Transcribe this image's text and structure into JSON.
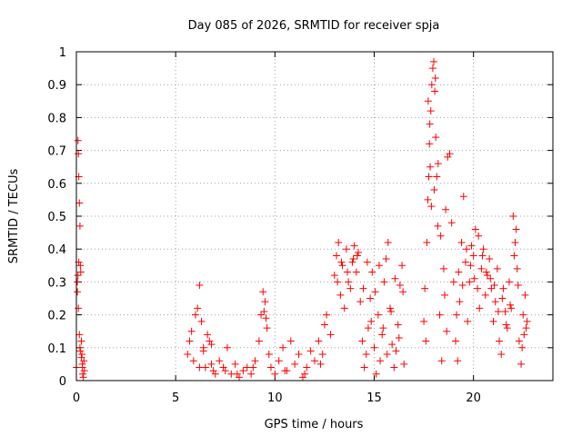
{
  "chart_data": {
    "type": "scatter",
    "title": "Day 085 of 2026, SRMTID for receiver spja",
    "xlabel": "GPS time / hours",
    "ylabel": "SRMTID / TECUs",
    "xlim": [
      0,
      24
    ],
    "ylim": [
      0,
      1
    ],
    "xticks": [
      0,
      5,
      10,
      15,
      20
    ],
    "xtick_labels": [
      "0",
      "5",
      "10",
      "15",
      "20"
    ],
    "yticks": [
      0,
      0.1,
      0.2,
      0.3,
      0.4,
      0.5,
      0.6,
      0.7,
      0.8,
      0.9,
      1
    ],
    "ytick_labels": [
      "0",
      "0.1",
      "0.2",
      "0.3",
      "0.4",
      "0.5",
      "0.6",
      "0.7",
      "0.8",
      "0.9",
      "1"
    ],
    "grid": true,
    "marker": "+",
    "series": [
      {
        "name": "SRMTID",
        "color": "#ff0000",
        "x": [
          0.0,
          0.05,
          0.08,
          0.1,
          0.12,
          0.15,
          0.18,
          0.2,
          0.22,
          0.25,
          0.28,
          0.3,
          0.32,
          0.35,
          0.38,
          0.4,
          0.05,
          0.1,
          0.15,
          0.12,
          0.18,
          0.08,
          0.2,
          0.25,
          0.3,
          5.6,
          5.7,
          5.8,
          5.9,
          6.0,
          6.1,
          6.2,
          6.3,
          6.4,
          6.5,
          6.6,
          6.7,
          6.8,
          6.9,
          7.0,
          7.2,
          7.4,
          7.6,
          7.8,
          8.0,
          8.2,
          8.4,
          8.6,
          8.8,
          9.0,
          9.2,
          9.3,
          9.4,
          9.5,
          9.6,
          9.7,
          9.8,
          10.0,
          10.2,
          10.4,
          10.6,
          10.8,
          11.0,
          11.2,
          11.4,
          11.6,
          11.8,
          12.0,
          12.2,
          12.4,
          12.5,
          12.6,
          12.8,
          13.0,
          13.1,
          13.2,
          13.3,
          13.4,
          13.5,
          13.6,
          13.7,
          13.8,
          13.9,
          14.0,
          14.1,
          14.2,
          14.3,
          14.4,
          14.5,
          14.6,
          14.7,
          14.8,
          14.9,
          15.0,
          15.1,
          15.2,
          15.3,
          15.4,
          15.5,
          15.6,
          15.7,
          15.8,
          15.9,
          16.0,
          16.1,
          16.2,
          16.3,
          16.4,
          16.5,
          17.5,
          17.55,
          17.6,
          17.65,
          17.7,
          17.75,
          17.8,
          17.85,
          17.9,
          17.95,
          18.0,
          18.05,
          18.1,
          18.15,
          18.2,
          18.3,
          18.4,
          18.5,
          18.6,
          18.7,
          18.8,
          18.9,
          19.0,
          19.1,
          19.2,
          19.3,
          19.4,
          19.5,
          19.6,
          19.7,
          19.8,
          19.9,
          20.0,
          20.1,
          20.2,
          20.3,
          20.4,
          20.5,
          20.6,
          20.7,
          20.8,
          20.9,
          21.0,
          21.1,
          21.2,
          21.3,
          21.4,
          21.5,
          21.6,
          21.7,
          21.8,
          21.9,
          22.0,
          22.1,
          22.2,
          22.3,
          22.4,
          22.5,
          22.6,
          22.7,
          6.2,
          6.4,
          6.8,
          7.5,
          8.1,
          8.9,
          9.45,
          9.55,
          10.5,
          11.5,
          12.3,
          13.15,
          13.35,
          13.65,
          13.95,
          14.15,
          14.45,
          14.65,
          14.85,
          15.05,
          15.25,
          15.45,
          15.65,
          15.85,
          16.05,
          16.25,
          16.45,
          17.72,
          17.78,
          17.82,
          17.88,
          18.02,
          18.08,
          18.22,
          18.35,
          18.55,
          18.65,
          19.15,
          19.25,
          19.45,
          19.65,
          19.85,
          20.05,
          20.25,
          20.45,
          20.65,
          20.85,
          21.05,
          21.25,
          21.45,
          21.65,
          21.85,
          22.05,
          22.15,
          22.25,
          22.45,
          22.55,
          22.65
        ],
        "y": [
          0.04,
          0.3,
          0.73,
          0.69,
          0.62,
          0.54,
          0.47,
          0.35,
          0.33,
          0.12,
          0.08,
          0.05,
          0.02,
          0.01,
          0.06,
          0.03,
          0.27,
          0.22,
          0.14,
          0.36,
          0.1,
          0.32,
          0.09,
          0.07,
          0.04,
          0.08,
          0.12,
          0.15,
          0.06,
          0.2,
          0.22,
          0.29,
          0.18,
          0.1,
          0.04,
          0.14,
          0.12,
          0.05,
          0.03,
          0.02,
          0.06,
          0.04,
          0.1,
          0.02,
          0.05,
          0.01,
          0.03,
          0.04,
          0.02,
          0.06,
          0.12,
          0.2,
          0.27,
          0.24,
          0.16,
          0.08,
          0.04,
          0.02,
          0.06,
          0.1,
          0.03,
          0.12,
          0.05,
          0.08,
          0.01,
          0.04,
          0.09,
          0.06,
          0.12,
          0.08,
          0.17,
          0.2,
          0.14,
          0.32,
          0.38,
          0.42,
          0.26,
          0.35,
          0.22,
          0.4,
          0.3,
          0.28,
          0.36,
          0.41,
          0.33,
          0.39,
          0.24,
          0.12,
          0.04,
          0.08,
          0.16,
          0.25,
          0.33,
          0.1,
          0.02,
          0.2,
          0.06,
          0.14,
          0.3,
          0.37,
          0.42,
          0.22,
          0.11,
          0.04,
          0.09,
          0.17,
          0.29,
          0.35,
          0.05,
          0.18,
          0.28,
          0.12,
          0.42,
          0.55,
          0.62,
          0.78,
          0.82,
          0.9,
          0.95,
          0.97,
          0.88,
          0.74,
          0.62,
          0.47,
          0.2,
          0.06,
          0.34,
          0.52,
          0.68,
          0.69,
          0.48,
          0.3,
          0.12,
          0.06,
          0.24,
          0.42,
          0.56,
          0.36,
          0.18,
          0.3,
          0.41,
          0.38,
          0.46,
          0.28,
          0.22,
          0.34,
          0.4,
          0.26,
          0.32,
          0.37,
          0.28,
          0.18,
          0.24,
          0.34,
          0.12,
          0.08,
          0.28,
          0.21,
          0.16,
          0.3,
          0.22,
          0.5,
          0.42,
          0.34,
          0.12,
          0.05,
          0.2,
          0.26,
          0.18,
          0.04,
          0.09,
          0.11,
          0.03,
          0.02,
          0.04,
          0.21,
          0.19,
          0.03,
          0.02,
          0.05,
          0.3,
          0.36,
          0.33,
          0.37,
          0.38,
          0.28,
          0.36,
          0.18,
          0.27,
          0.35,
          0.16,
          0.08,
          0.21,
          0.31,
          0.13,
          0.27,
          0.85,
          0.72,
          0.65,
          0.53,
          0.58,
          0.92,
          0.66,
          0.44,
          0.26,
          0.15,
          0.2,
          0.33,
          0.29,
          0.4,
          0.35,
          0.31,
          0.44,
          0.38,
          0.33,
          0.31,
          0.29,
          0.21,
          0.25,
          0.17,
          0.23,
          0.38,
          0.46,
          0.29,
          0.1,
          0.14,
          0.16
        ]
      }
    ]
  }
}
